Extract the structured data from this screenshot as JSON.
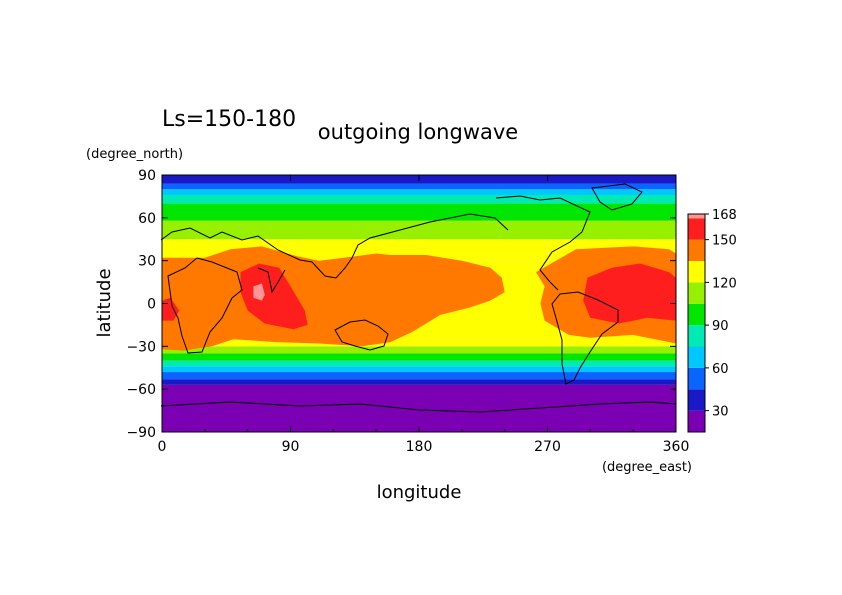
{
  "chart_data": {
    "type": "heatmap",
    "top_left_label": "Ls=150-180",
    "title": "outgoing longwave",
    "xlabel": "longitude",
    "ylabel": "latitude",
    "x_units": "(degree_east)",
    "y_units": "(degree_north)",
    "xlim": [
      0,
      360
    ],
    "ylim": [
      -90,
      90
    ],
    "x_ticks": [
      0,
      90,
      180,
      270,
      360
    ],
    "y_ticks": [
      90,
      60,
      30,
      0,
      -30,
      -60,
      -90
    ],
    "x_tick_labels": [
      "0",
      "90",
      "180",
      "270",
      "360"
    ],
    "y_tick_labels": [
      "90",
      "60",
      "30",
      "0",
      "−30",
      "−60",
      "−90"
    ],
    "colorbar": {
      "levels": [
        15,
        30,
        45,
        60,
        75,
        90,
        105,
        120,
        135,
        150,
        165,
        168
      ],
      "colors": [
        "#7b00b4",
        "#1919c8",
        "#0a64ff",
        "#00c8ff",
        "#00ebb4",
        "#00e600",
        "#96f000",
        "#ffff00",
        "#ff7800",
        "#ff1e1e",
        "#ff9696"
      ],
      "tick_values": [
        30,
        60,
        90,
        120,
        150,
        168
      ],
      "tick_labels": [
        "30",
        "60",
        "90",
        "120",
        "150",
        "168"
      ]
    },
    "zonal_bands": [
      {
        "lat_min": -90,
        "lat_max": -57,
        "level_index": 0
      },
      {
        "lat_min": -57,
        "lat_max": -53,
        "level_index": 1
      },
      {
        "lat_min": -53,
        "lat_max": -48,
        "level_index": 2
      },
      {
        "lat_min": -48,
        "lat_max": -44,
        "level_index": 3
      },
      {
        "lat_min": -44,
        "lat_max": -40,
        "level_index": 4
      },
      {
        "lat_min": -40,
        "lat_max": -35,
        "level_index": 5
      },
      {
        "lat_min": -35,
        "lat_max": -30,
        "level_index": 6
      },
      {
        "lat_min": -30,
        "lat_max": 30,
        "level_index": 7
      },
      {
        "lat_min": 30,
        "lat_max": 45,
        "level_index": 7
      },
      {
        "lat_min": 45,
        "lat_max": 58,
        "level_index": 6
      },
      {
        "lat_min": 58,
        "lat_max": 70,
        "level_index": 5
      },
      {
        "lat_min": 70,
        "lat_max": 76,
        "level_index": 4
      },
      {
        "lat_min": 76,
        "lat_max": 80,
        "level_index": 3
      },
      {
        "lat_min": 80,
        "lat_max": 84,
        "level_index": 2
      },
      {
        "lat_min": 84,
        "lat_max": 90,
        "level_index": 1
      }
    ],
    "regions": [
      {
        "level_index": 8,
        "points": [
          [
            0,
            32
          ],
          [
            30,
            32
          ],
          [
            48,
            38
          ],
          [
            70,
            40
          ],
          [
            95,
            33
          ],
          [
            110,
            30
          ],
          [
            135,
            33
          ],
          [
            150,
            35
          ],
          [
            160,
            34
          ],
          [
            185,
            34
          ],
          [
            210,
            30
          ],
          [
            230,
            25
          ],
          [
            238,
            18
          ],
          [
            240,
            8
          ],
          [
            230,
            2
          ],
          [
            215,
            -3
          ],
          [
            195,
            -8
          ],
          [
            175,
            -20
          ],
          [
            160,
            -27
          ],
          [
            140,
            -30
          ],
          [
            110,
            -28
          ],
          [
            80,
            -27
          ],
          [
            50,
            -25
          ],
          [
            35,
            -30
          ],
          [
            15,
            -33
          ],
          [
            0,
            -32
          ]
        ]
      },
      {
        "level_index": 8,
        "points": [
          [
            262,
            22
          ],
          [
            290,
            38
          ],
          [
            330,
            40
          ],
          [
            355,
            38
          ],
          [
            360,
            35
          ],
          [
            360,
            -28
          ],
          [
            330,
            -22
          ],
          [
            300,
            -24
          ],
          [
            285,
            -22
          ],
          [
            268,
            -12
          ],
          [
            265,
            0
          ],
          [
            268,
            12
          ]
        ]
      },
      {
        "level_index": 9,
        "points": [
          [
            0,
            2
          ],
          [
            6,
            4
          ],
          [
            12,
            -5
          ],
          [
            8,
            -12
          ],
          [
            0,
            -12
          ]
        ]
      },
      {
        "level_index": 9,
        "points": [
          [
            55,
            22
          ],
          [
            68,
            28
          ],
          [
            82,
            25
          ],
          [
            90,
            12
          ],
          [
            100,
            -5
          ],
          [
            102,
            -15
          ],
          [
            92,
            -18
          ],
          [
            72,
            -14
          ],
          [
            60,
            -5
          ],
          [
            55,
            8
          ]
        ]
      },
      {
        "level_index": 9,
        "points": [
          [
            298,
            18
          ],
          [
            315,
            25
          ],
          [
            335,
            28
          ],
          [
            355,
            22
          ],
          [
            360,
            18
          ],
          [
            360,
            -12
          ],
          [
            340,
            -10
          ],
          [
            320,
            -14
          ],
          [
            300,
            -10
          ],
          [
            295,
            2
          ]
        ]
      },
      {
        "level_index": 10,
        "points": [
          [
            64,
            12
          ],
          [
            70,
            14
          ],
          [
            72,
            6
          ],
          [
            70,
            2
          ],
          [
            64,
            4
          ]
        ]
      }
    ]
  }
}
